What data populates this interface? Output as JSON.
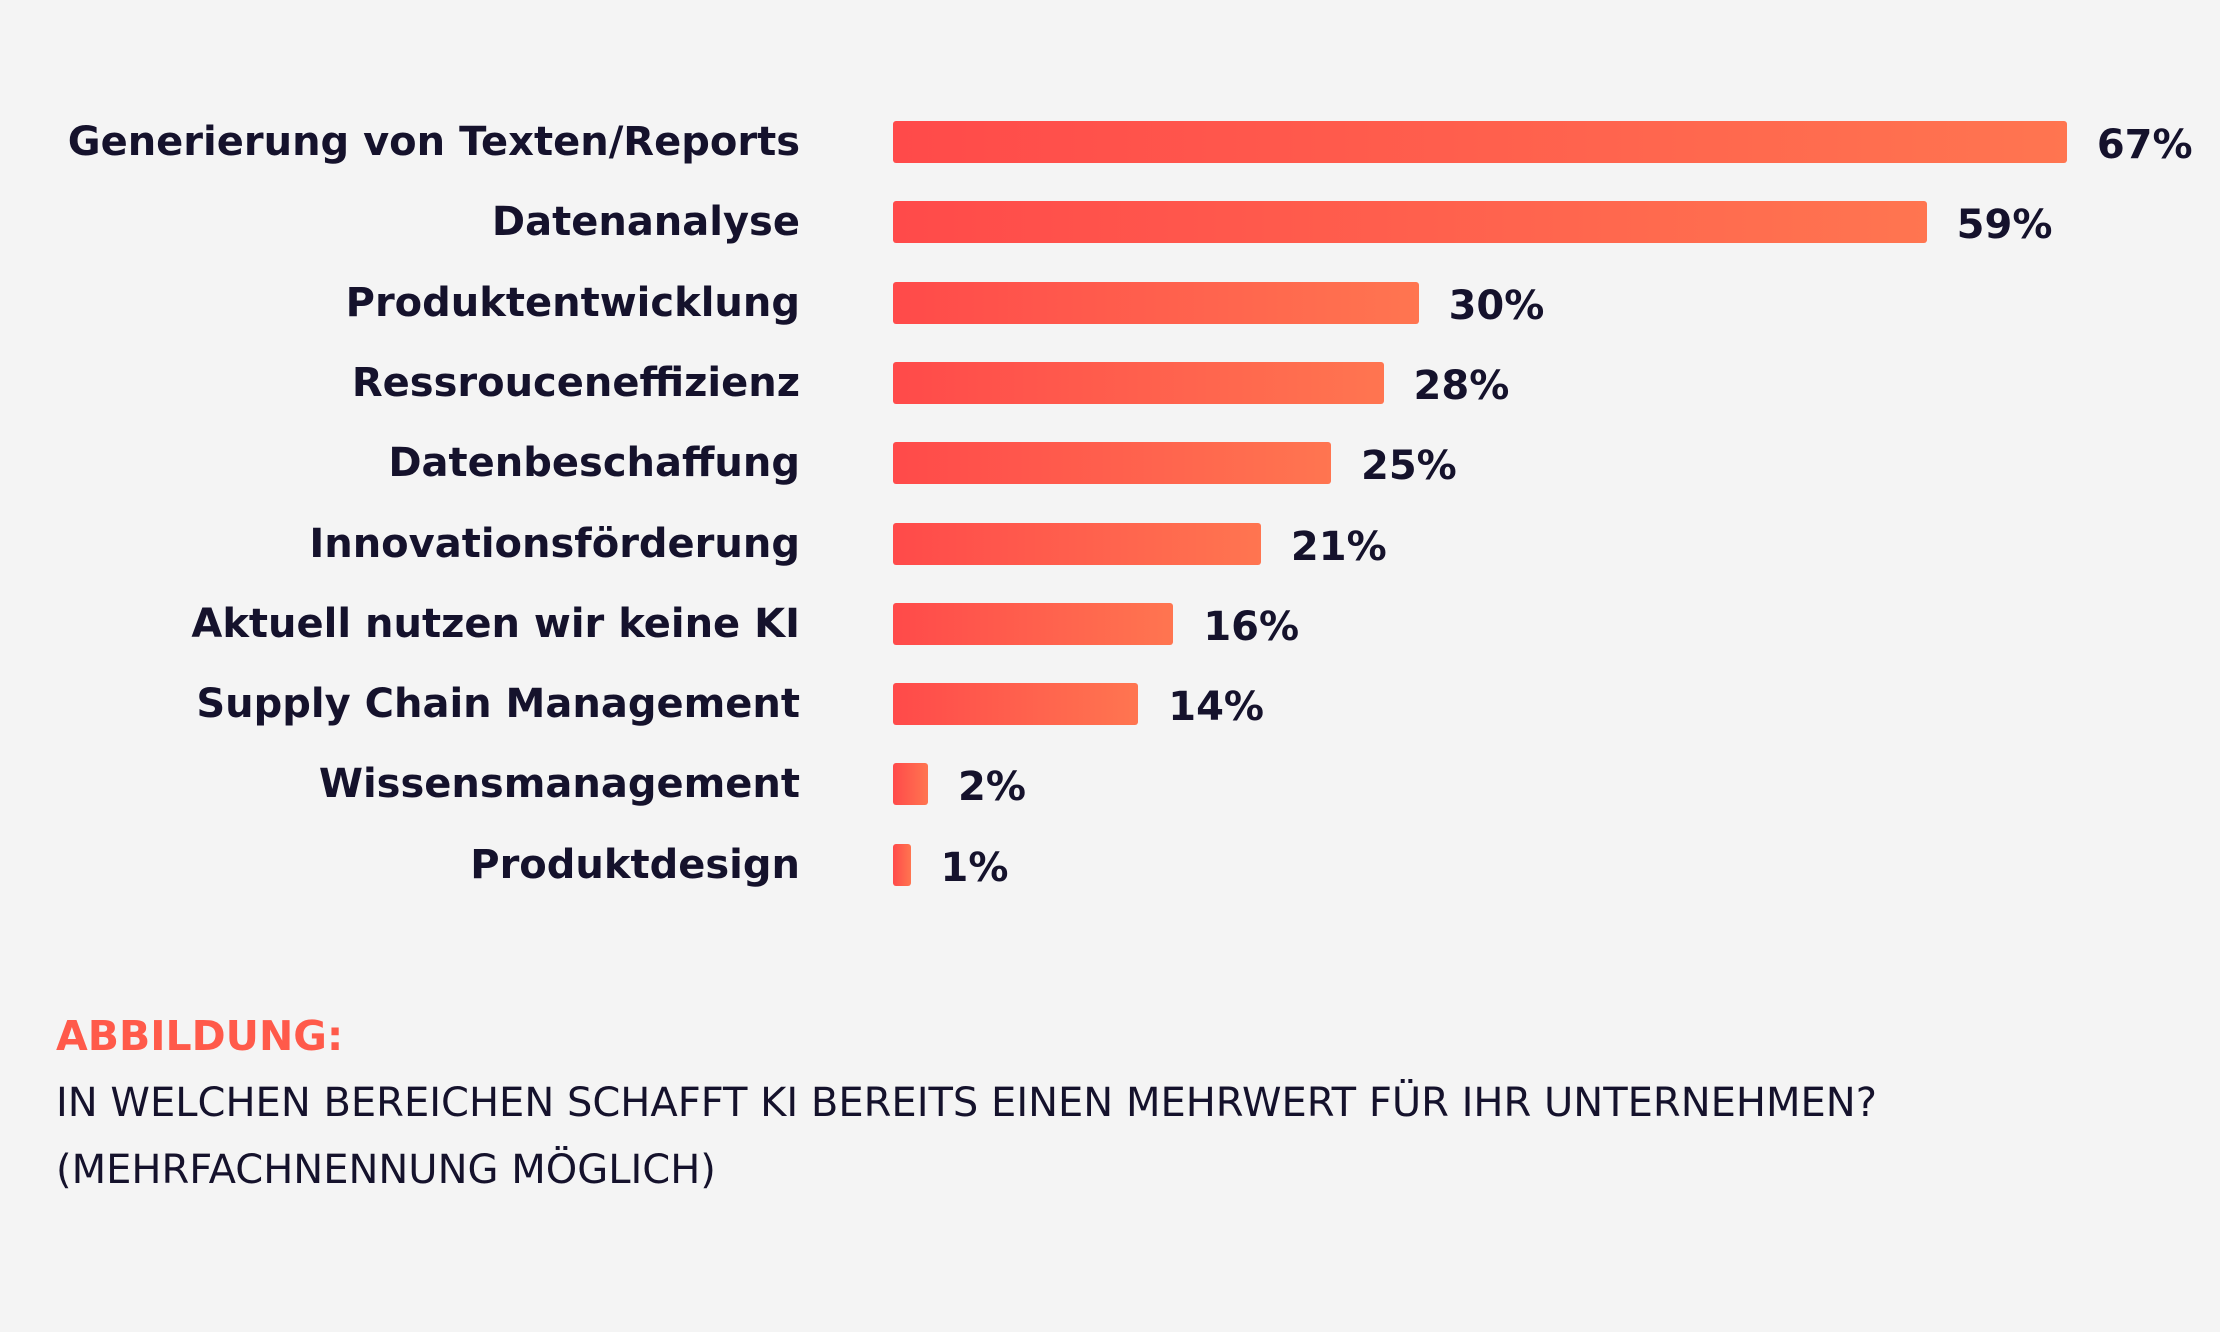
{
  "chart_data": {
    "type": "bar",
    "orientation": "horizontal",
    "categories": [
      "Generierung von Texten/Reports",
      "Datenanalyse",
      "Produktentwicklung",
      "Ressrouceneffizienz",
      "Datenbeschaffung",
      "Innovationsförderung",
      "Aktuell nutzen wir keine KI",
      "Supply Chain Management",
      "Wissensmanagement",
      "Produktdesign"
    ],
    "values": [
      67,
      59,
      30,
      28,
      25,
      21,
      16,
      14,
      2,
      1
    ],
    "value_labels": [
      "67%",
      "59%",
      "30%",
      "28%",
      "25%",
      "21%",
      "16%",
      "14%",
      "2%",
      "1%"
    ],
    "unit": "%",
    "grid": false,
    "colors": {
      "bar_start": "#ff4a4a",
      "bar_end": "#ff7550",
      "text": "#15122c",
      "background": "#f4f4f4"
    }
  },
  "caption": {
    "label": "ABBILDUNG:",
    "label_color": "#ff5a4a",
    "lines": [
      "IN WELCHEN BEREICHEN SCHAFFT KI BEREITS EINEN MEHRWERT FÜR IHR UNTERNEHMEN?",
      "(MEHRFACHNENNUNG MÖGLICH)"
    ]
  }
}
